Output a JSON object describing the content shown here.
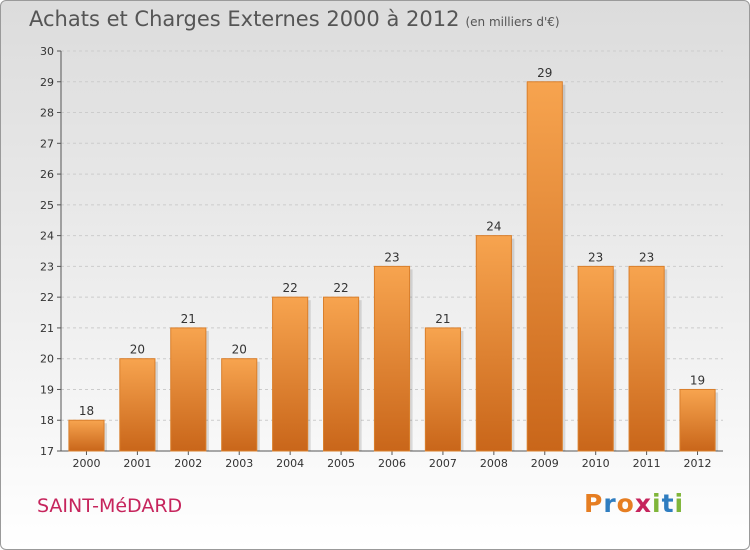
{
  "header": {
    "title": "Achats et Charges Externes 2000 à 2012",
    "unit": "(en milliers d'€)"
  },
  "footer": {
    "commune": "SAINT-MéDARD",
    "logo_text": "Proxiti",
    "logo_colors": [
      "#e67e22",
      "#2f7dc0",
      "#e67e22",
      "#c6245c",
      "#7fb539",
      "#2f7dc0",
      "#7fb539"
    ]
  },
  "colors": {
    "bar_top": "#f7a44f",
    "bar_bottom": "#c9661a",
    "grid": "#cccccc",
    "title": "#555555",
    "commune": "#c6245c"
  },
  "chart_data": {
    "type": "bar",
    "title": "Achats et Charges Externes 2000 à 2012",
    "subtitle": "(en milliers d'€)",
    "xlabel": "",
    "ylabel": "",
    "categories": [
      "2000",
      "2001",
      "2002",
      "2003",
      "2004",
      "2005",
      "2006",
      "2007",
      "2008",
      "2009",
      "2010",
      "2011",
      "2012"
    ],
    "values": [
      18,
      20,
      21,
      20,
      22,
      22,
      23,
      21,
      24,
      29,
      23,
      23,
      19
    ],
    "ylim": [
      17,
      30
    ],
    "yticks": [
      17,
      18,
      19,
      20,
      21,
      22,
      23,
      24,
      25,
      26,
      27,
      28,
      29,
      30
    ],
    "grid": true,
    "legend": "none"
  }
}
